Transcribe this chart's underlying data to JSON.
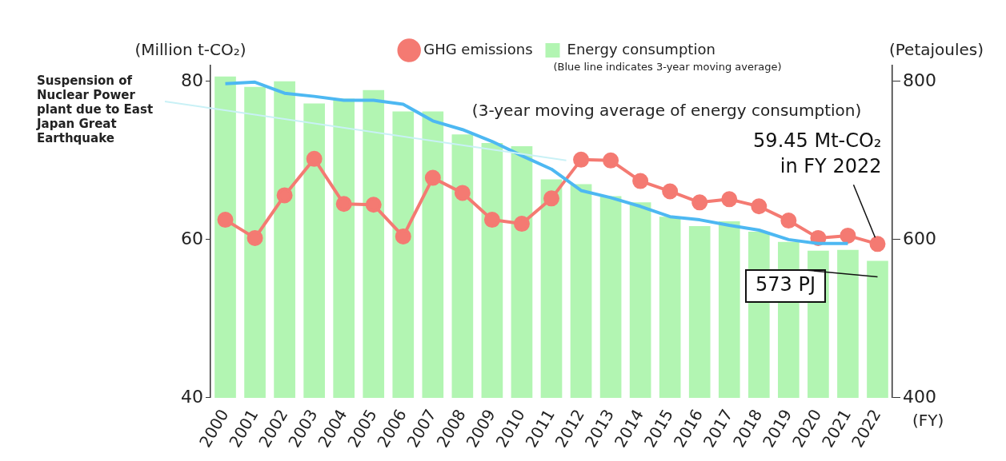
{
  "chart_data": {
    "type": "bar",
    "xlabel": "(FY)",
    "ylabel": "(Million t-CO₂)",
    "y2label": "(Petajoules)",
    "categories": [
      "2000",
      "2001",
      "2002",
      "2003",
      "2004",
      "2005",
      "2006",
      "2007",
      "2008",
      "2009",
      "2010",
      "2011",
      "2012",
      "2013",
      "2014",
      "2015",
      "2016",
      "2017",
      "2018",
      "2019",
      "2020",
      "2021",
      "2022"
    ],
    "series": [
      {
        "name": "GHG emissions",
        "type": "line",
        "marker": "circle",
        "color": "#f47a72",
        "values": [
          62.5,
          60.2,
          65.6,
          70.2,
          64.5,
          64.4,
          60.4,
          67.8,
          65.9,
          62.5,
          62.0,
          65.2,
          70.1,
          70.0,
          67.4,
          66.1,
          64.7,
          65.1,
          64.2,
          62.4,
          60.2,
          60.5,
          59.45
        ]
      },
      {
        "name": "Energy consumption",
        "axis": "y2",
        "color": "#b2f5b2",
        "values": [
          806,
          793,
          800,
          772,
          778,
          789,
          762,
          762,
          733,
          722,
          718,
          676,
          670,
          655,
          647,
          629,
          617,
          623,
          610,
          597,
          586,
          587,
          573
        ]
      },
      {
        "name": "(3-year moving average of energy consumption)",
        "type": "line",
        "marker": "none",
        "axis": "y2",
        "color": "#4db8f2",
        "values": [
          797,
          799,
          785,
          781,
          776,
          776,
          771,
          750,
          739,
          724,
          706,
          689,
          662,
          653,
          642,
          629,
          625,
          618,
          612,
          600,
          595,
          595,
          null
        ]
      }
    ],
    "ylim": [
      40,
      82
    ],
    "yticks": [
      40,
      60,
      80
    ],
    "y2lim": [
      400,
      820
    ],
    "y2ticks": [
      400,
      600,
      800
    ],
    "grid": false,
    "legend": "top",
    "annotations": [
      "Suspension of Nuclear Power plant due to East Japan Great Earthquake",
      "(Blue line indicates 3-year moving average)",
      {
        "text": "59.45 Mt-CO₂ in FY 2022",
        "x": "2022",
        "y": 59.45
      },
      "573 PJ"
    ]
  }
}
